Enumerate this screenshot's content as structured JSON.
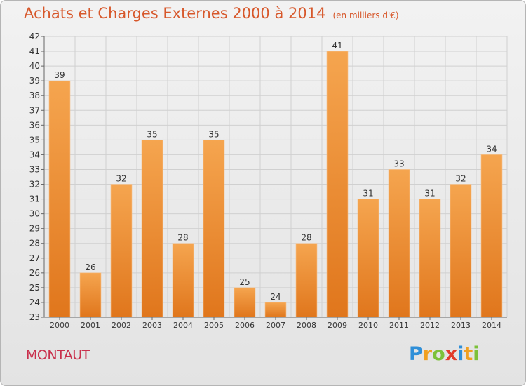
{
  "title": "Achats et Charges Externes 2000 à 2014",
  "unit": "(en milliers d'€)",
  "place": "MONTAUT",
  "logo": {
    "letters": [
      "P",
      "r",
      "o",
      "x",
      "i",
      "t",
      "i"
    ],
    "colors": [
      "#2f8fd8",
      "#f0a020",
      "#7cc13a",
      "#e23a2a",
      "#2f8fd8",
      "#f0a020",
      "#7cc13a"
    ]
  },
  "chart_data": {
    "type": "bar",
    "categories": [
      "2000",
      "2001",
      "2002",
      "2003",
      "2004",
      "2005",
      "2006",
      "2007",
      "2008",
      "2009",
      "2010",
      "2011",
      "2012",
      "2013",
      "2014"
    ],
    "values": [
      39,
      26,
      32,
      35,
      28,
      35,
      25,
      24,
      28,
      41,
      31,
      33,
      31,
      32,
      34
    ],
    "ylim": [
      23,
      42
    ],
    "yticks": [
      23,
      24,
      25,
      26,
      27,
      28,
      29,
      30,
      31,
      32,
      33,
      34,
      35,
      36,
      37,
      38,
      39,
      40,
      41,
      42
    ],
    "grid": true,
    "bar_color_top": "#f5a54f",
    "bar_color_bottom": "#e0761c"
  }
}
